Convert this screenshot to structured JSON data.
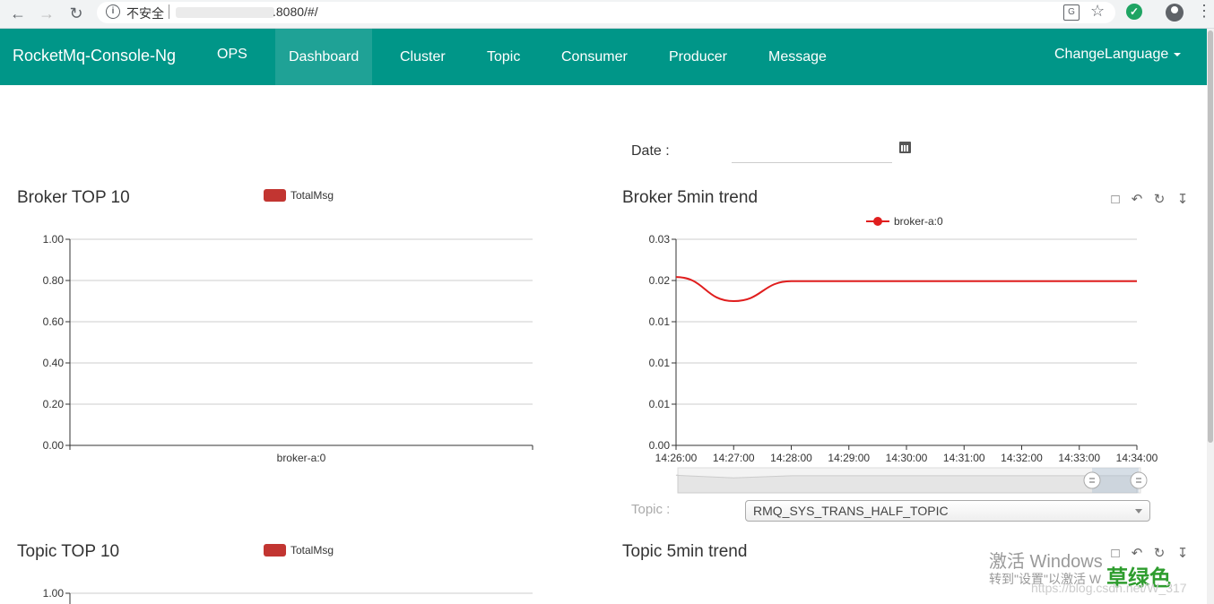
{
  "browser": {
    "back_icon": "arrow-left-icon",
    "forward_icon": "arrow-right-icon",
    "reload_icon": "reload-icon",
    "security_text": "不安全",
    "url": ".8080/#/",
    "translate_icon": "translate-icon",
    "star_icon": "star-icon",
    "account_icon": "account-icon",
    "menu_icon": "more-vert-icon"
  },
  "navbar": {
    "brand": "RocketMq-Console-Ng",
    "items": [
      {
        "label": "OPS"
      },
      {
        "label": "Dashboard",
        "active": true
      },
      {
        "label": "Cluster"
      },
      {
        "label": "Topic"
      },
      {
        "label": "Consumer"
      },
      {
        "label": "Producer"
      },
      {
        "label": "Message"
      }
    ],
    "language": "ChangeLanguage",
    "color": "#009688"
  },
  "date": {
    "label": "Date :",
    "value": ""
  },
  "broker_top10": {
    "title": "Broker TOP 10",
    "legend": "TotalMsg"
  },
  "broker_trend": {
    "title": "Broker 5min trend",
    "legend": "broker-a:0"
  },
  "topic_top10": {
    "title": "Topic TOP 10",
    "legend": "TotalMsg",
    "first_tick": "1.00"
  },
  "topic_trend": {
    "title": "Topic 5min trend"
  },
  "topic_selector": {
    "label": "Topic :",
    "value": "RMQ_SYS_TRANS_HALF_TOPIC"
  },
  "watermark": {
    "line1": "激活 Windows",
    "line2": "转到\"设置\"以激活 W",
    "overlay": "草绿色",
    "url": "https://blog.csdn.net/W_317"
  },
  "chart_data": [
    {
      "type": "bar",
      "title": "Broker TOP 10",
      "categories": [
        "broker-a:0"
      ],
      "series": [
        {
          "name": "TotalMsg",
          "values": [
            0
          ]
        }
      ],
      "ylim": [
        0,
        1
      ],
      "yticks": [
        "0.00",
        "0.20",
        "0.40",
        "0.60",
        "0.80",
        "1.00"
      ],
      "color": "#c23531"
    },
    {
      "type": "line",
      "title": "Broker 5min trend",
      "x": [
        "14:26:00",
        "14:27:00",
        "14:28:00",
        "14:29:00",
        "14:30:00",
        "14:31:00",
        "14:32:00",
        "14:33:00",
        "14:34:00"
      ],
      "xticks": [
        "14:26:00",
        "14:27:00",
        "14:28:00",
        "14:29:00",
        "14:30:00",
        "14:31:00",
        "14:32:00",
        "14:33:00",
        "14:34:00"
      ],
      "yticks": [
        "0.00",
        "0.01",
        "0.01",
        "0.01",
        "0.02",
        "0.03"
      ],
      "ylim": [
        0,
        0.03
      ],
      "series": [
        {
          "name": "broker-a:0",
          "values": [
            0.0245,
            0.021,
            0.0239,
            0.0239,
            0.0239,
            0.0239,
            0.0239,
            0.0239,
            0.0239
          ]
        }
      ],
      "color": "#e01e1e"
    }
  ]
}
